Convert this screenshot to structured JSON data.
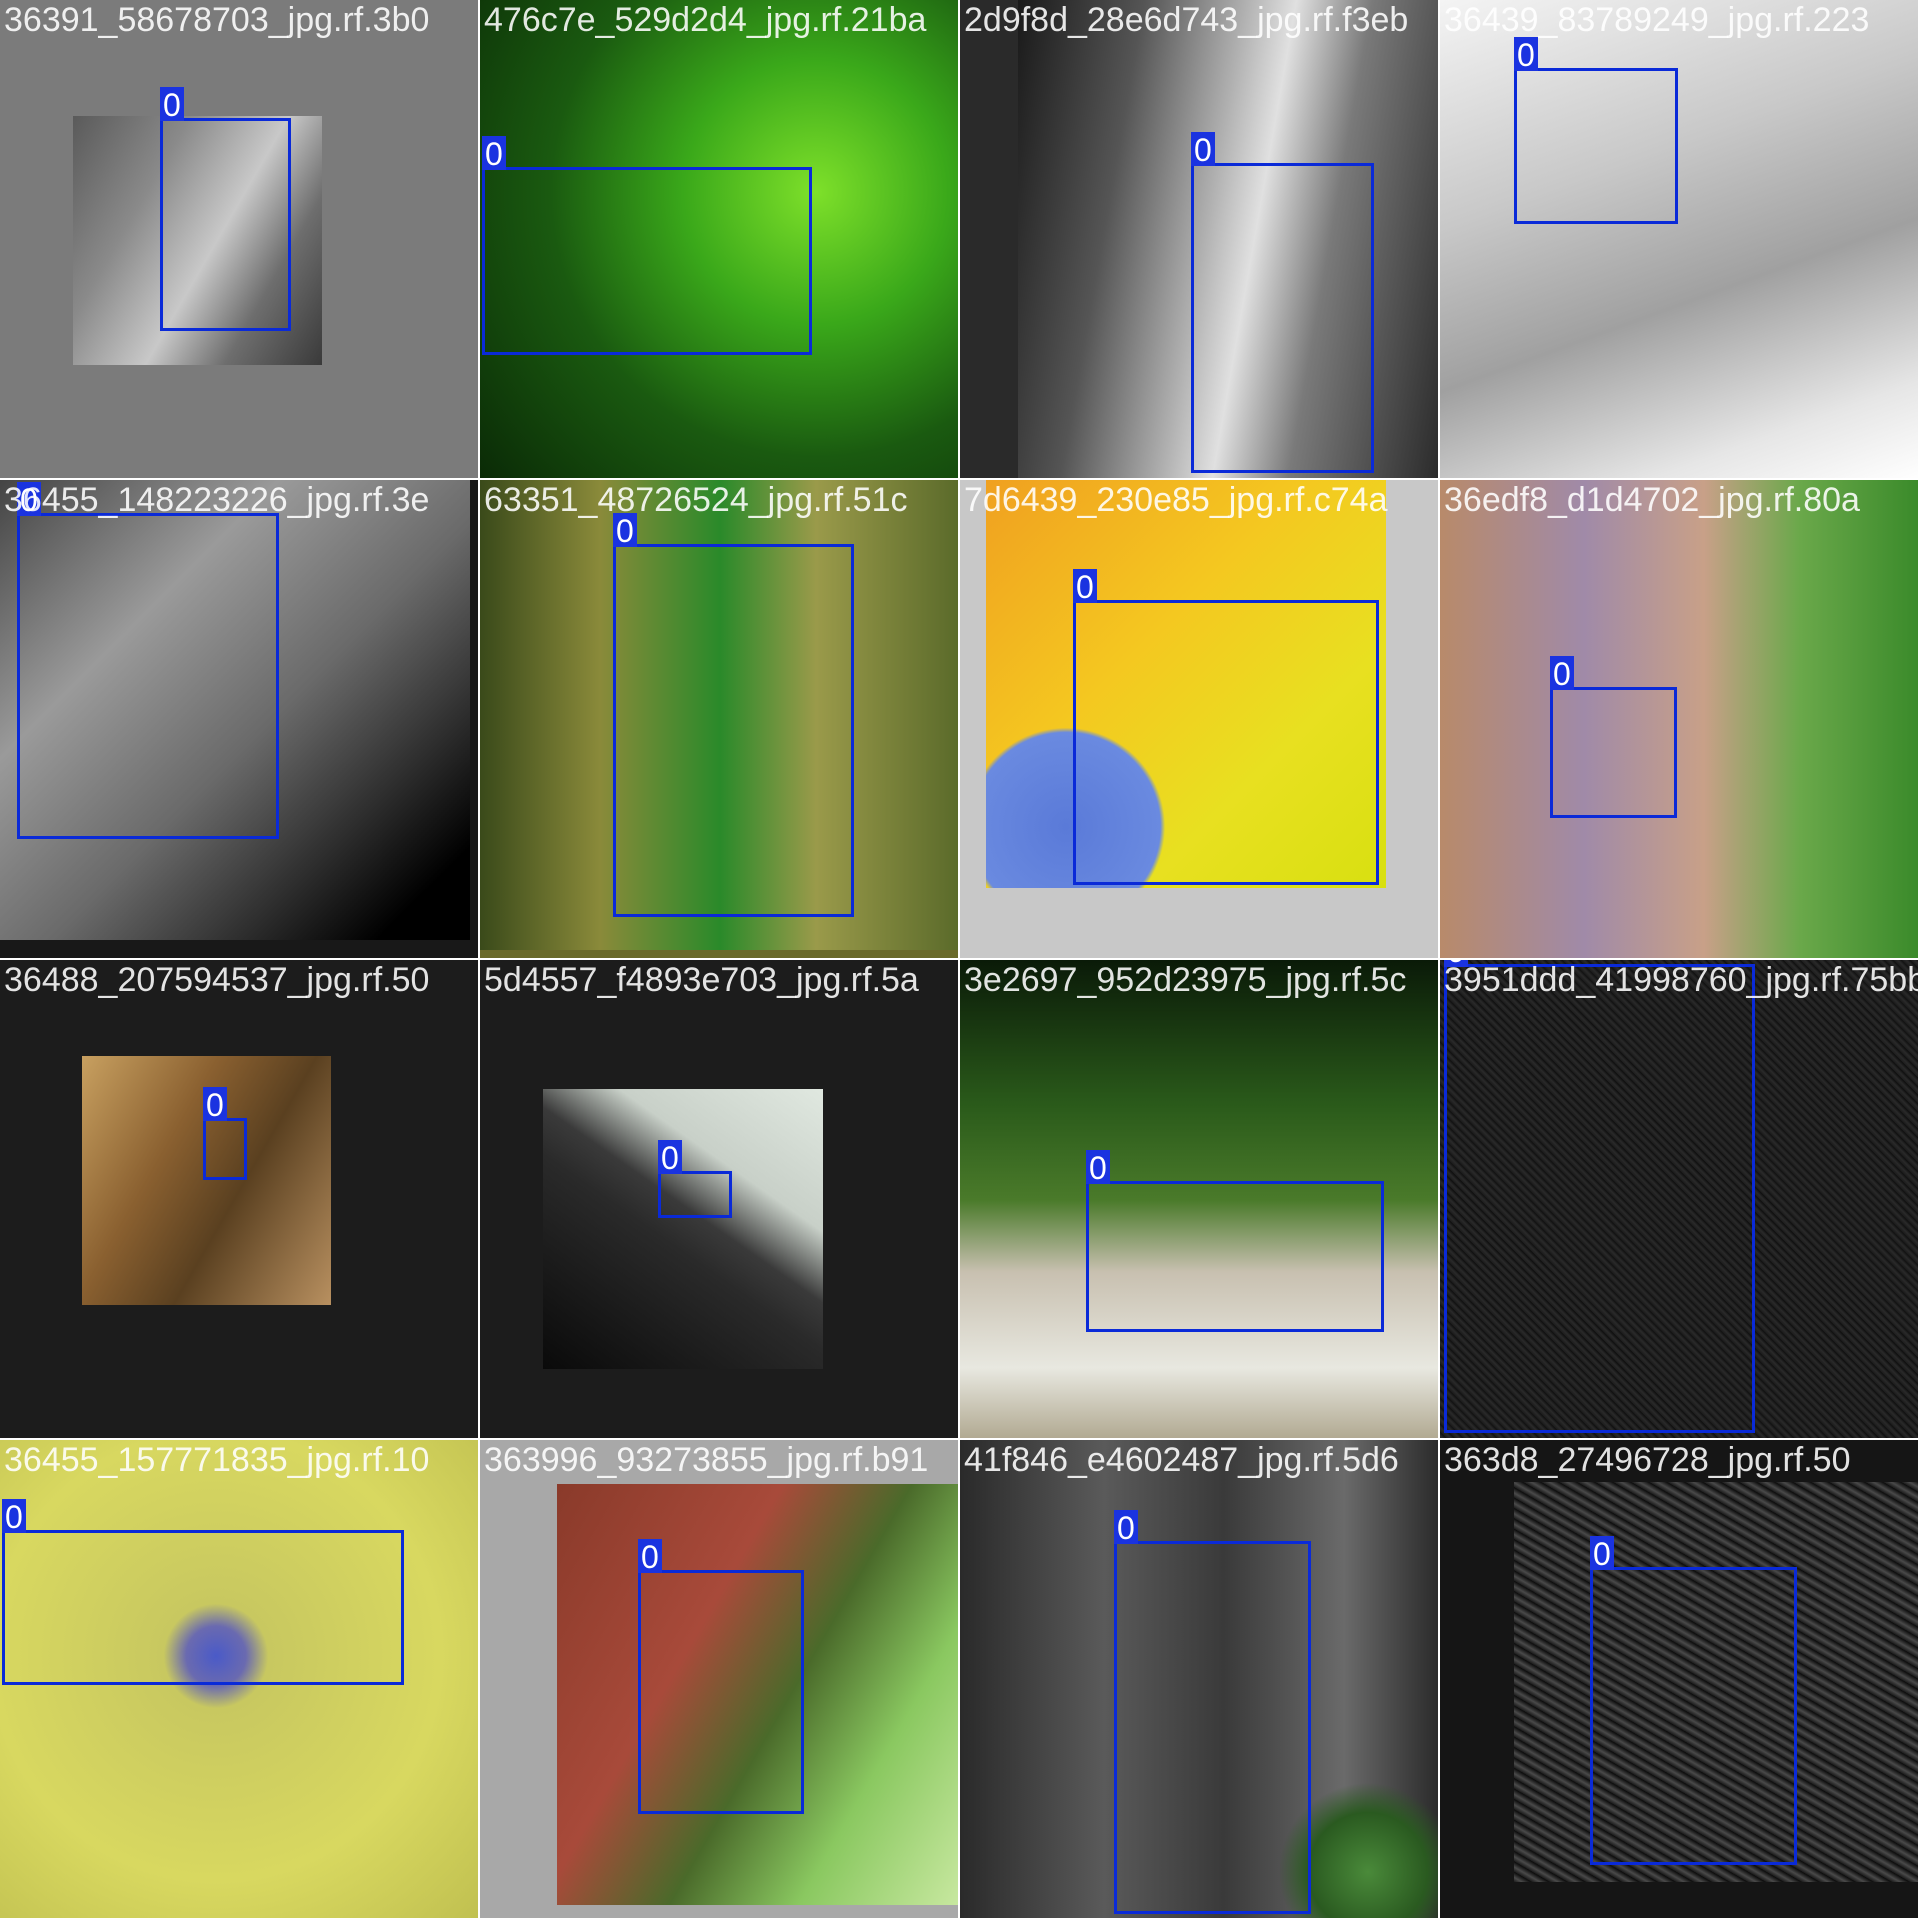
{
  "mosaic": {
    "tiles": [
      {
        "filename": "36391_58678703_jpg.rf.3b0",
        "box_label": "0"
      },
      {
        "filename": "476c7e_529d2d4_jpg.rf.21ba",
        "box_label": "0"
      },
      {
        "filename": "2d9f8d_28e6d743_jpg.rf.f3eb",
        "box_label": "0"
      },
      {
        "filename": "36439_83789249_jpg.rf.223",
        "box_label": "0"
      },
      {
        "filename": "36455_148223226_jpg.rf.3e",
        "box_label": "0"
      },
      {
        "filename": "63351_48726524_jpg.rf.51c",
        "box_label": "0"
      },
      {
        "filename": "7d6439_230e85_jpg.rf.c74a",
        "box_label": "0"
      },
      {
        "filename": "36edf8_d1d4702_jpg.rf.80a",
        "box_label": "0"
      },
      {
        "filename": "36488_207594537_jpg.rf.50",
        "box_label": "0"
      },
      {
        "filename": "5d4557_f4893e703_jpg.rf.5a",
        "box_label": "0"
      },
      {
        "filename": "3e2697_952d23975_jpg.rf.5c",
        "box_label": "0"
      },
      {
        "filename": "3951ddd_41998760_jpg.rf.75bb",
        "box_label": "0"
      },
      {
        "filename": "36455_157771835_jpg.rf.10",
        "box_label": "0"
      },
      {
        "filename": "363996_93273855_jpg.rf.b91",
        "box_label": "0"
      },
      {
        "filename": "41f846_e4602487_jpg.rf.5d6",
        "box_label": "0"
      },
      {
        "filename": "363d8_27496728_jpg.rf.50",
        "box_label": "0"
      }
    ]
  },
  "colors": {
    "box": "#0a2ad8",
    "label_bg": "#1a33e0"
  }
}
